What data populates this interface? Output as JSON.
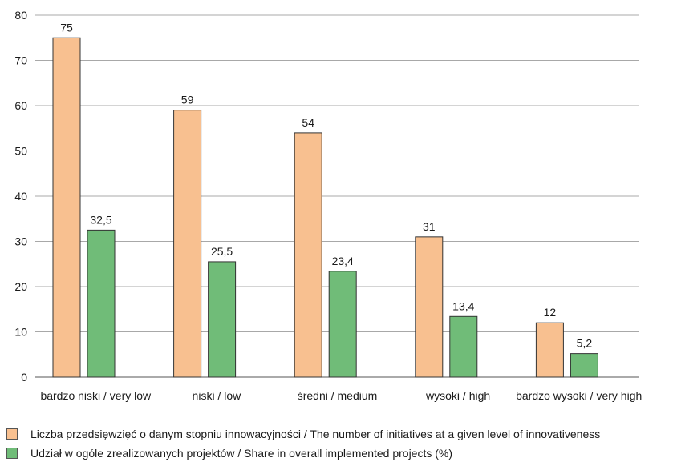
{
  "chart_data": {
    "type": "bar",
    "categories": [
      "bardzo niski / very low",
      "niski / low",
      "średni / medium",
      "wysoki / high",
      "bardzo wysoki / very high"
    ],
    "series": [
      {
        "name": "Liczba przedsięwzięć o danym stopniu innowacyjności / The number of initiatives at a given level of innovativeness",
        "values": [
          75,
          59,
          54,
          31,
          12
        ],
        "labels": [
          "75",
          "59",
          "54",
          "31",
          "12"
        ],
        "color": "#f8c090"
      },
      {
        "name": "Udział w ogóle zrealizowanych projektów / Share in overall implemented projects (%)",
        "values": [
          32.5,
          25.5,
          23.4,
          13.4,
          5.2
        ],
        "labels": [
          "32,5",
          "25,5",
          "23,4",
          "13,4",
          "5,2"
        ],
        "color": "#70bc78"
      }
    ],
    "yticks": [
      0,
      10,
      20,
      30,
      40,
      50,
      60,
      70,
      80
    ],
    "ylim": [
      0,
      80
    ],
    "grid": true,
    "legend_position": "bottom",
    "title": "",
    "xlabel": "",
    "ylabel": ""
  }
}
